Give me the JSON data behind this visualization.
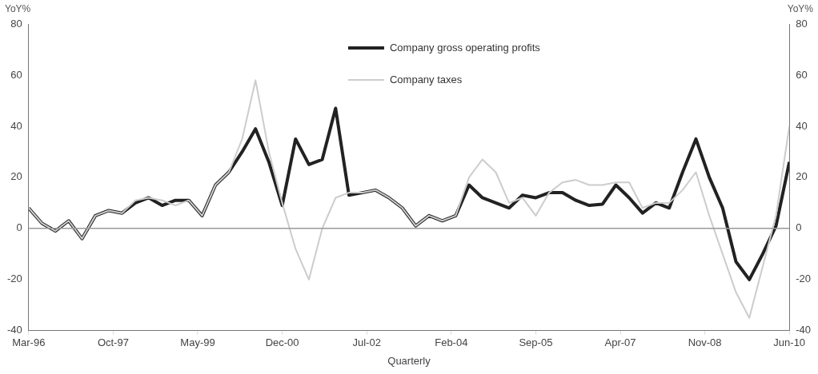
{
  "chart_data": {
    "type": "line",
    "xlabel": "Quarterly",
    "ylabel": "YoY%",
    "y2label": "YoY%",
    "x": [
      "1996-03",
      "1996-06",
      "1996-09",
      "1996-12",
      "1997-03",
      "1997-06",
      "1997-09",
      "1997-12",
      "1998-03",
      "1998-06",
      "1998-09",
      "1998-12",
      "1999-03",
      "1999-06",
      "1999-09",
      "1999-12",
      "2000-03",
      "2000-06",
      "2000-09",
      "2000-12",
      "2001-03",
      "2001-06",
      "2001-09",
      "2001-12",
      "2002-03",
      "2002-06",
      "2002-09",
      "2002-12",
      "2003-03",
      "2003-06",
      "2003-09",
      "2003-12",
      "2004-03",
      "2004-06",
      "2004-09",
      "2004-12",
      "2005-03",
      "2005-06",
      "2005-09",
      "2005-12",
      "2006-03",
      "2006-06",
      "2006-09",
      "2006-12",
      "2007-03",
      "2007-06",
      "2007-09",
      "2007-12",
      "2008-03",
      "2008-06",
      "2008-09",
      "2008-12",
      "2009-03",
      "2009-06",
      "2009-09",
      "2009-12",
      "2010-03",
      "2010-06"
    ],
    "series": [
      {
        "name": "Company gross operating profits",
        "color": "#222222",
        "values": [
          8,
          2,
          -1,
          3,
          -4,
          5,
          7,
          6,
          10,
          12,
          9,
          11,
          11,
          5,
          17,
          22,
          30,
          39,
          26,
          9,
          35,
          25,
          27,
          47,
          13,
          14,
          15,
          12,
          8,
          1,
          5,
          3,
          5,
          17,
          12,
          10,
          8,
          13,
          12,
          14,
          14,
          11,
          9,
          9.5,
          17,
          12,
          6,
          10,
          8,
          22,
          35,
          20,
          8,
          -13,
          -20,
          -10,
          1,
          26
        ]
      },
      {
        "name": "Company taxes",
        "color": "#cccccc",
        "values": [
          8,
          2,
          -1,
          3,
          -4,
          5,
          7,
          6,
          11,
          12,
          11,
          9,
          11,
          5,
          17,
          22,
          35,
          58,
          30,
          10,
          -8,
          -20,
          0,
          12,
          14,
          14,
          15,
          12,
          8,
          1,
          5,
          3,
          5,
          20,
          27,
          22,
          10,
          12,
          5,
          14,
          18,
          19,
          17,
          17,
          18,
          18,
          8,
          10,
          10,
          15,
          22,
          5,
          -10,
          -25,
          -35,
          -15,
          5,
          40
        ]
      }
    ],
    "xlim": [
      "1996-03",
      "2010-06"
    ],
    "xticks": [
      {
        "value": "1996-03",
        "label": "Mar-96"
      },
      {
        "value": "1997-10",
        "label": "Oct-97"
      },
      {
        "value": "1999-05",
        "label": "May-99"
      },
      {
        "value": "2000-12",
        "label": "Dec-00"
      },
      {
        "value": "2002-07",
        "label": "Jul-02"
      },
      {
        "value": "2004-02",
        "label": "Feb-04"
      },
      {
        "value": "2005-09",
        "label": "Sep-05"
      },
      {
        "value": "2007-04",
        "label": "Apr-07"
      },
      {
        "value": "2008-11",
        "label": "Nov-08"
      },
      {
        "value": "2010-06",
        "label": "Jun-10"
      }
    ],
    "ylim": [
      -40,
      80
    ],
    "yticks": [
      -40,
      -20,
      0,
      20,
      40,
      60,
      80
    ],
    "y2lim": [
      -40,
      80
    ],
    "y2ticks": [
      -40,
      -20,
      0,
      20,
      40,
      60,
      80
    ],
    "ref_lines": [
      {
        "axis": "y",
        "value": 0,
        "color": "#999999"
      }
    ],
    "legend": "top",
    "marker": "none",
    "line_style": "solid",
    "grid": false
  }
}
